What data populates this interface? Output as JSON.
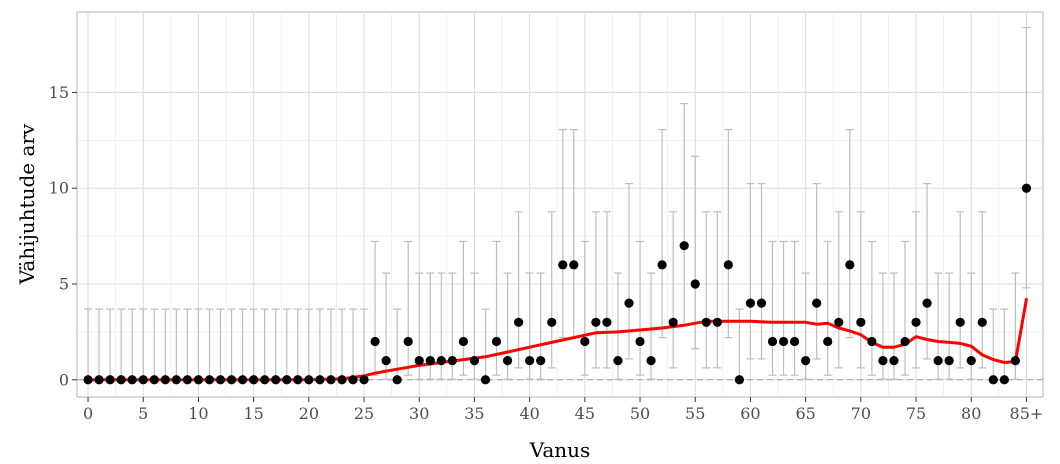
{
  "chart_data": {
    "type": "scatter",
    "title": "",
    "xlabel": "Vanus",
    "ylabel": "Vähijuhtude arv",
    "xlim": [
      -1,
      86.5
    ],
    "ylim": [
      -0.9,
      19.2
    ],
    "x_ticks": [
      0,
      5,
      10,
      15,
      20,
      25,
      30,
      35,
      40,
      45,
      50,
      55,
      60,
      65,
      70,
      75,
      80,
      85
    ],
    "x_tick_labels": [
      "0",
      "5",
      "10",
      "15",
      "20",
      "25",
      "30",
      "35",
      "40",
      "45",
      "50",
      "55",
      "60",
      "65",
      "70",
      "75",
      "80",
      "85+"
    ],
    "y_ticks": [
      0,
      5,
      10,
      15
    ],
    "y_tick_labels": [
      "0",
      "5",
      "10",
      "15"
    ],
    "grid": true,
    "reference_line": {
      "y": 0,
      "style": "dashed"
    },
    "series": [
      {
        "kind": "points",
        "ages": [
          0,
          1,
          2,
          3,
          4,
          5,
          6,
          7,
          8,
          9,
          10,
          11,
          12,
          13,
          14,
          15,
          16,
          17,
          18,
          19,
          20,
          21,
          22,
          23,
          24,
          25,
          26,
          27,
          28,
          29,
          30,
          31,
          32,
          33,
          34,
          35,
          36,
          37,
          38,
          39,
          40,
          41,
          42,
          43,
          44,
          45,
          46,
          47,
          48,
          49,
          50,
          51,
          52,
          53,
          54,
          55,
          56,
          57,
          58,
          59,
          60,
          61,
          62,
          63,
          64,
          65,
          66,
          67,
          68,
          69,
          70,
          71,
          72,
          73,
          74,
          75,
          76,
          77,
          78,
          79,
          80,
          81,
          82,
          83,
          84,
          85
        ],
        "counts": [
          0,
          0,
          0,
          0,
          0,
          0,
          0,
          0,
          0,
          0,
          0,
          0,
          0,
          0,
          0,
          0,
          0,
          0,
          0,
          0,
          0,
          0,
          0,
          0,
          0,
          0,
          2,
          1,
          0,
          2,
          1,
          1,
          1,
          1,
          2,
          1,
          0,
          2,
          1,
          3,
          1,
          1,
          3,
          6,
          6,
          2,
          3,
          3,
          1,
          4,
          2,
          1,
          6,
          3,
          7,
          5,
          3,
          3,
          6,
          0,
          4,
          4,
          2,
          2,
          2,
          1,
          4,
          2,
          3,
          6,
          3,
          2,
          1,
          1,
          2,
          3,
          4,
          1,
          1,
          3,
          1,
          3,
          0,
          0,
          1,
          10
        ]
      },
      {
        "kind": "error_bars",
        "color": "#bdbdbd",
        "ages": [
          0,
          1,
          2,
          3,
          4,
          5,
          6,
          7,
          8,
          9,
          10,
          11,
          12,
          13,
          14,
          15,
          16,
          17,
          18,
          19,
          20,
          21,
          22,
          23,
          24,
          25,
          26,
          27,
          28,
          29,
          30,
          31,
          32,
          33,
          34,
          35,
          36,
          37,
          38,
          39,
          40,
          41,
          42,
          43,
          44,
          45,
          46,
          47,
          48,
          49,
          50,
          51,
          52,
          53,
          54,
          55,
          56,
          57,
          58,
          59,
          60,
          61,
          62,
          63,
          64,
          65,
          66,
          67,
          68,
          69,
          70,
          71,
          72,
          73,
          74,
          75,
          76,
          77,
          78,
          79,
          80,
          81,
          82,
          83,
          84,
          85
        ],
        "lower": [
          0,
          0,
          0,
          0,
          0,
          0,
          0,
          0,
          0,
          0,
          0,
          0,
          0,
          0,
          0,
          0,
          0,
          0,
          0,
          0,
          0,
          0,
          0,
          0,
          0,
          0,
          0.24,
          0.03,
          0,
          0.24,
          0.03,
          0.03,
          0.03,
          0.03,
          0.24,
          0.03,
          0,
          0.24,
          0.03,
          0.62,
          0.03,
          0.03,
          0.62,
          2.2,
          2.2,
          0.24,
          0.62,
          0.62,
          0.03,
          1.09,
          0.24,
          0.03,
          2.2,
          0.62,
          2.81,
          1.62,
          0.62,
          0.62,
          2.2,
          0,
          1.09,
          1.09,
          0.24,
          0.24,
          0.24,
          0.03,
          1.09,
          0.24,
          0.62,
          2.2,
          0.62,
          0.24,
          0.03,
          0.03,
          0.24,
          0.62,
          1.09,
          0.03,
          0.03,
          0.62,
          0.03,
          0.62,
          0,
          0,
          0.03,
          4.8
        ],
        "upper": [
          3.69,
          3.69,
          3.69,
          3.69,
          3.69,
          3.69,
          3.69,
          3.69,
          3.69,
          3.69,
          3.69,
          3.69,
          3.69,
          3.69,
          3.69,
          3.69,
          3.69,
          3.69,
          3.69,
          3.69,
          3.69,
          3.69,
          3.69,
          3.69,
          3.69,
          3.69,
          7.22,
          5.57,
          3.69,
          7.22,
          5.57,
          5.57,
          5.57,
          5.57,
          7.22,
          5.57,
          3.69,
          7.22,
          5.57,
          8.77,
          5.57,
          5.57,
          8.77,
          13.06,
          13.06,
          7.22,
          8.77,
          8.77,
          5.57,
          10.24,
          7.22,
          5.57,
          13.06,
          8.77,
          14.42,
          11.67,
          8.77,
          8.77,
          13.06,
          3.69,
          10.24,
          10.24,
          7.22,
          7.22,
          7.22,
          5.57,
          10.24,
          7.22,
          8.77,
          13.06,
          8.77,
          7.22,
          5.57,
          5.57,
          7.22,
          8.77,
          10.24,
          5.57,
          5.57,
          8.77,
          5.57,
          8.77,
          3.69,
          3.69,
          5.57,
          18.39
        ]
      },
      {
        "kind": "smooth_line",
        "color": "#ff0000",
        "ages": [
          0,
          5,
          10,
          15,
          20,
          23,
          25,
          26,
          28,
          30,
          32,
          34,
          36,
          38,
          40,
          42,
          44,
          46,
          48,
          50,
          52,
          54,
          56,
          58,
          60,
          62,
          64,
          65,
          66,
          67,
          68,
          69,
          70,
          71,
          72,
          73,
          74,
          75,
          76,
          77,
          78,
          79,
          80,
          81,
          82,
          83,
          84,
          85
        ],
        "values": [
          0,
          0,
          0,
          0,
          0,
          0.05,
          0.2,
          0.35,
          0.55,
          0.75,
          0.9,
          1.05,
          1.2,
          1.45,
          1.7,
          1.95,
          2.2,
          2.45,
          2.5,
          2.6,
          2.7,
          2.85,
          3.05,
          3.05,
          3.05,
          3.0,
          3.0,
          3.0,
          2.9,
          2.95,
          2.7,
          2.55,
          2.35,
          1.95,
          1.7,
          1.7,
          1.85,
          2.25,
          2.1,
          2.0,
          1.95,
          1.9,
          1.75,
          1.3,
          1.05,
          0.9,
          0.95,
          4.2
        ]
      }
    ]
  }
}
